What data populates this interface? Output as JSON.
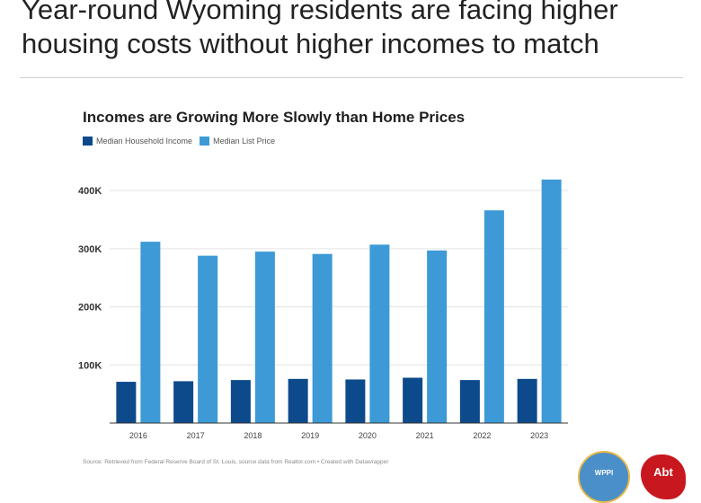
{
  "page": {
    "title": "Year-round Wyoming residents are facing higher housing costs without higher incomes to match"
  },
  "chart_data": {
    "type": "bar",
    "title": "Incomes are Growing More Slowly than Home Prices",
    "categories": [
      "2016",
      "2017",
      "2018",
      "2019",
      "2020",
      "2021",
      "2022",
      "2023"
    ],
    "series": [
      {
        "name": "Median Household Income",
        "color": "#0d4a8c",
        "values": [
          71000,
          72000,
          74000,
          76000,
          75000,
          78000,
          74000,
          76000
        ]
      },
      {
        "name": "Median List Price",
        "color": "#3d9ad6",
        "values": [
          312000,
          288000,
          295000,
          291000,
          307000,
          297000,
          366000,
          419000
        ]
      }
    ],
    "yticks": [
      "100K",
      "200K",
      "300K",
      "400K"
    ],
    "ytick_values": [
      100000,
      200000,
      300000,
      400000
    ],
    "ylim": [
      0,
      425000
    ],
    "xlabel": "",
    "ylabel": "",
    "grid": true,
    "legend_position": "top-left"
  },
  "source": "Source: Retrieved from Federal Reserve Board of St. Louis, source data from Realtor.com • Created with Datawrapper",
  "logos": {
    "wppi": "WPPI",
    "abt": "Abt"
  }
}
